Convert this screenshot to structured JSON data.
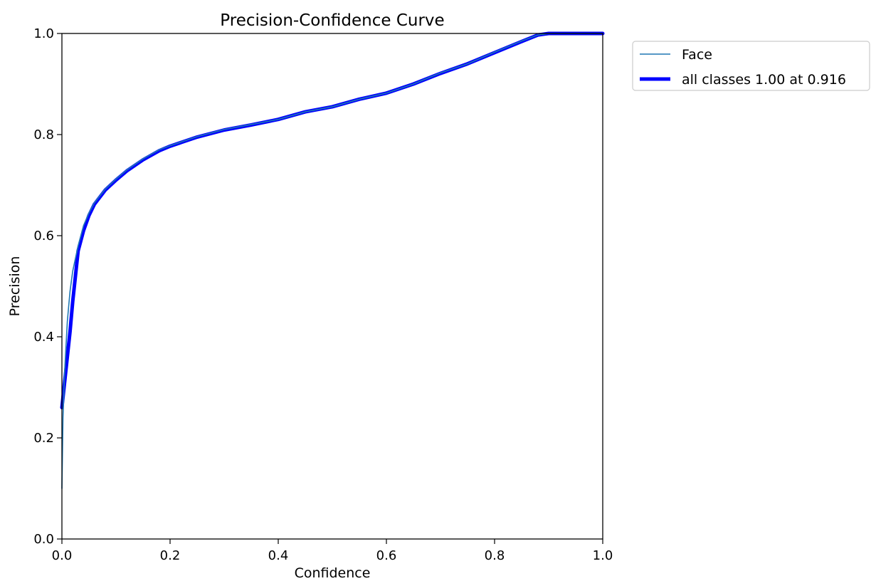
{
  "chart_data": {
    "type": "line",
    "title": "Precision-Confidence Curve",
    "xlabel": "Confidence",
    "ylabel": "Precision",
    "xlim": [
      0,
      1
    ],
    "ylim": [
      0,
      1
    ],
    "x_ticks": [
      "0.0",
      "0.2",
      "0.4",
      "0.6",
      "0.8",
      "1.0"
    ],
    "y_ticks": [
      "0.0",
      "0.2",
      "0.4",
      "0.6",
      "0.8",
      "1.0"
    ],
    "grid": false,
    "legend_position": "outside-top-right",
    "series": [
      {
        "name": "Face",
        "color": "#1f77b4",
        "style": "thin",
        "points": [
          [
            0.0,
            0.1
          ],
          [
            0.002,
            0.24
          ],
          [
            0.005,
            0.33
          ],
          [
            0.01,
            0.43
          ],
          [
            0.015,
            0.49
          ],
          [
            0.02,
            0.53
          ],
          [
            0.03,
            0.58
          ],
          [
            0.04,
            0.62
          ],
          [
            0.05,
            0.645
          ],
          [
            0.06,
            0.665
          ],
          [
            0.08,
            0.692
          ],
          [
            0.1,
            0.712
          ],
          [
            0.12,
            0.73
          ],
          [
            0.15,
            0.752
          ],
          [
            0.18,
            0.77
          ],
          [
            0.2,
            0.778
          ],
          [
            0.25,
            0.796
          ],
          [
            0.3,
            0.81
          ],
          [
            0.35,
            0.82
          ],
          [
            0.4,
            0.83
          ],
          [
            0.45,
            0.845
          ],
          [
            0.5,
            0.855
          ],
          [
            0.55,
            0.87
          ],
          [
            0.6,
            0.882
          ],
          [
            0.65,
            0.9
          ],
          [
            0.7,
            0.922
          ],
          [
            0.75,
            0.94
          ],
          [
            0.8,
            0.963
          ],
          [
            0.85,
            0.985
          ],
          [
            0.88,
            0.997
          ],
          [
            0.9,
            1.0
          ],
          [
            0.95,
            1.0
          ],
          [
            1.0,
            1.0
          ]
        ]
      },
      {
        "name": "all classes 1.00 at 0.916",
        "color": "#0000ff",
        "style": "thick",
        "points": [
          [
            0.0,
            0.26
          ],
          [
            0.005,
            0.31
          ],
          [
            0.01,
            0.36
          ],
          [
            0.015,
            0.41
          ],
          [
            0.02,
            0.47
          ],
          [
            0.025,
            0.52
          ],
          [
            0.03,
            0.57
          ],
          [
            0.04,
            0.61
          ],
          [
            0.05,
            0.64
          ],
          [
            0.06,
            0.662
          ],
          [
            0.08,
            0.69
          ],
          [
            0.1,
            0.71
          ],
          [
            0.12,
            0.728
          ],
          [
            0.15,
            0.75
          ],
          [
            0.18,
            0.768
          ],
          [
            0.2,
            0.777
          ],
          [
            0.25,
            0.795
          ],
          [
            0.3,
            0.809
          ],
          [
            0.35,
            0.819
          ],
          [
            0.4,
            0.83
          ],
          [
            0.45,
            0.845
          ],
          [
            0.5,
            0.855
          ],
          [
            0.55,
            0.87
          ],
          [
            0.6,
            0.882
          ],
          [
            0.65,
            0.9
          ],
          [
            0.7,
            0.921
          ],
          [
            0.75,
            0.94
          ],
          [
            0.8,
            0.962
          ],
          [
            0.85,
            0.984
          ],
          [
            0.88,
            0.997
          ],
          [
            0.9,
            1.0
          ],
          [
            0.95,
            1.0
          ],
          [
            1.0,
            1.0
          ]
        ]
      }
    ]
  }
}
